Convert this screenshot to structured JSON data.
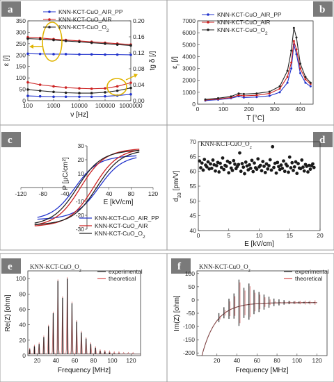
{
  "chart_data": [
    {
      "id": "a",
      "type": "line",
      "panel_label": "a",
      "xlabel": "ν [Hz]",
      "ylabel": "ε [/]",
      "y2label": "tg δ [/]",
      "xscale": "log",
      "xlim": [
        100,
        1000000
      ],
      "ylim": [
        0,
        350
      ],
      "y2lim": [
        0,
        0.2
      ],
      "xticks": [
        "100",
        "1000",
        "10000",
        "100000",
        "1000000"
      ],
      "yticks": [
        "0",
        "50",
        "100",
        "150",
        "200",
        "250",
        "300",
        "350"
      ],
      "y2ticks": [
        "0.00",
        "0.04",
        "0.08",
        "0.12",
        "0.16",
        "0.20"
      ],
      "legend": [
        "KNN-KCT-CuO_AIR_PP",
        "KNN-KCT-CuO_AIR",
        "KNN-KCT-CuO_O2"
      ],
      "legend_placement": "top-left",
      "colors": [
        "#2233cc",
        "#cc2222",
        "#222222"
      ],
      "series": [
        {
          "name": "KNN-KCT-CuO_AIR_PP",
          "axis": "left",
          "x": [
            100,
            300,
            1000,
            3000,
            10000,
            30000,
            100000,
            300000,
            1000000
          ],
          "values": [
            206,
            205,
            204,
            204,
            203,
            203,
            202,
            202,
            201
          ]
        },
        {
          "name": "KNN-KCT-CuO_AIR",
          "axis": "left",
          "x": [
            100,
            300,
            1000,
            3000,
            10000,
            30000,
            100000,
            300000,
            1000000
          ],
          "values": [
            278,
            275,
            270,
            266,
            262,
            258,
            254,
            250,
            246
          ]
        },
        {
          "name": "KNN-KCT-CuO_O2",
          "axis": "left",
          "x": [
            100,
            300,
            1000,
            3000,
            10000,
            30000,
            100000,
            300000,
            1000000
          ],
          "values": [
            272,
            270,
            266,
            262,
            258,
            254,
            250,
            246,
            242
          ]
        },
        {
          "name": "KNN-KCT-CuO_AIR_PP",
          "axis": "right",
          "x": [
            100,
            300,
            1000,
            3000,
            10000,
            30000,
            100000,
            300000,
            1000000
          ],
          "values": [
            0.012,
            0.011,
            0.01,
            0.01,
            0.01,
            0.01,
            0.011,
            0.013,
            0.016
          ]
        },
        {
          "name": "KNN-KCT-CuO_AIR",
          "axis": "right",
          "x": [
            100,
            300,
            1000,
            3000,
            10000,
            30000,
            100000,
            300000,
            1000000
          ],
          "values": [
            0.046,
            0.04,
            0.036,
            0.033,
            0.031,
            0.03,
            0.031,
            0.036,
            0.045
          ]
        },
        {
          "name": "KNN-KCT-CuO_O2",
          "axis": "right",
          "x": [
            100,
            300,
            1000,
            3000,
            10000,
            30000,
            100000,
            300000,
            1000000
          ],
          "values": [
            0.028,
            0.025,
            0.022,
            0.02,
            0.019,
            0.019,
            0.021,
            0.025,
            0.032
          ]
        }
      ]
    },
    {
      "id": "b",
      "type": "line",
      "panel_label": "b",
      "xlabel": "T [°C]",
      "ylabel": "εr [/]",
      "xlim": [
        0,
        450
      ],
      "ylim": [
        0,
        7000
      ],
      "xticks": [
        "0",
        "100",
        "200",
        "300",
        "400"
      ],
      "yticks": [
        "0",
        "1000",
        "2000",
        "3000",
        "4000",
        "5000",
        "6000",
        "7000"
      ],
      "legend": [
        "KNN-KCT-CuO_AIR_PP",
        "KNN-KCT-CuO_AIR",
        "KNN-KCT-CuO_O2"
      ],
      "legend_placement": "top-left",
      "colors": [
        "#2233cc",
        "#cc2222",
        "#222222"
      ],
      "series": [
        {
          "name": "KNN-KCT-CuO_AIR_PP",
          "x": [
            30,
            80,
            130,
            160,
            180,
            230,
            280,
            320,
            350,
            365,
            375,
            385,
            400,
            420,
            440
          ],
          "values": [
            300,
            380,
            500,
            660,
            560,
            600,
            700,
            1000,
            1800,
            3000,
            5000,
            4200,
            2600,
            1800,
            1500
          ]
        },
        {
          "name": "KNN-KCT-CuO_AIR",
          "x": [
            30,
            80,
            130,
            160,
            180,
            230,
            280,
            320,
            350,
            365,
            375,
            385,
            400,
            420,
            440
          ],
          "values": [
            350,
            430,
            560,
            760,
            700,
            750,
            900,
            1300,
            2300,
            3500,
            5300,
            4600,
            3000,
            2100,
            1700
          ]
        },
        {
          "name": "KNN-KCT-CuO_O2",
          "x": [
            30,
            80,
            130,
            160,
            180,
            230,
            280,
            320,
            350,
            365,
            375,
            385,
            400,
            420,
            440
          ],
          "values": [
            400,
            500,
            650,
            900,
            850,
            900,
            1050,
            1500,
            2800,
            4500,
            6400,
            5600,
            3400,
            2300,
            1800
          ]
        }
      ]
    },
    {
      "id": "c",
      "type": "line",
      "panel_label": "c",
      "xlabel": "E [kV/cm]",
      "ylabel": "P [µC/cm²]",
      "xlim": [
        -120,
        120
      ],
      "ylim": [
        -30,
        30
      ],
      "xticks": [
        "-120",
        "-80",
        "-40",
        "0",
        "40",
        "80",
        "120"
      ],
      "yticks": [
        "-30",
        "-20",
        "-10",
        "0",
        "10",
        "20",
        "30"
      ],
      "legend": [
        "KNN-KCT-CuO_AIR_PP",
        "KNN-KCT-CuO_AIR",
        "KNN-KCT-CuO_O2"
      ],
      "legend_placement": "bottom-right",
      "colors": [
        "#2233cc",
        "#cc2222",
        "#222222"
      ],
      "series": [
        {
          "name": "KNN-KCT-CuO_AIR_PP",
          "Ec": 22,
          "Pr": 10,
          "Emax": 90,
          "Ps": 23
        },
        {
          "name": "KNN-KCT-CuO_AIR",
          "Ec": 12,
          "Pr": 15,
          "Emax": 95,
          "Ps": 28
        },
        {
          "name": "KNN-KCT-CuO_O2",
          "Ec": 18,
          "Pr": 21,
          "Emax": 95,
          "Ps": 27
        }
      ]
    },
    {
      "id": "d",
      "type": "scatter",
      "panel_label": "d",
      "title": "KNN-KCT-CuO_O2",
      "xlabel": "E [kV/cm]",
      "ylabel": "d33 [pm/V]",
      "xlim": [
        0,
        20
      ],
      "ylim": [
        40,
        70
      ],
      "xticks": [
        "0",
        "5",
        "10",
        "15",
        "20"
      ],
      "yticks": [
        "40",
        "45",
        "50",
        "55",
        "60",
        "65",
        "70"
      ],
      "series": [
        {
          "name": "d33",
          "x": [
            0.2,
            0.4,
            0.6,
            0.8,
            1.0,
            1.2,
            1.4,
            1.6,
            1.8,
            2.0,
            2.2,
            2.4,
            2.6,
            2.8,
            3.0,
            3.2,
            3.4,
            3.6,
            3.8,
            4.0,
            4.2,
            4.4,
            4.6,
            4.8,
            5.0,
            5.2,
            5.4,
            5.6,
            5.8,
            6.0,
            6.2,
            6.4,
            6.6,
            6.8,
            7.0,
            7.2,
            7.4,
            7.6,
            7.8,
            8.0,
            8.2,
            8.4,
            8.6,
            8.8,
            9.0,
            9.2,
            9.4,
            9.6,
            9.8,
            10.0,
            10.2,
            10.4,
            10.6,
            10.8,
            11.0,
            11.2,
            11.4,
            11.6,
            11.8,
            12.0,
            12.2,
            12.4,
            12.6,
            12.8,
            13.0,
            13.2,
            13.4,
            13.6,
            13.8,
            14.0,
            14.2,
            14.4,
            14.6,
            14.8,
            15.0,
            15.2,
            15.4,
            15.6,
            15.8,
            16.0,
            16.2,
            16.4,
            16.6,
            16.8,
            17.0,
            17.2,
            17.4,
            17.6,
            17.8,
            18.0,
            18.2,
            18.4,
            18.6,
            18.8,
            19.0
          ],
          "values": [
            63.5,
            61.2,
            62.8,
            60.4,
            64.0,
            62.1,
            61.5,
            63.2,
            60.8,
            62.5,
            61.0,
            63.8,
            62.2,
            60.1,
            61.9,
            63.0,
            59.8,
            62.7,
            61.3,
            64.5,
            60.6,
            62.0,
            61.7,
            63.4,
            59.5,
            62.9,
            61.1,
            60.3,
            63.6,
            62.4,
            60.9,
            61.6,
            62.3,
            66.2,
            60.0,
            62.6,
            61.4,
            59.2,
            63.1,
            61.8,
            60.5,
            62.2,
            61.0,
            63.7,
            59.9,
            62.8,
            61.2,
            60.7,
            64.2,
            61.5,
            62.0,
            60.2,
            63.3,
            61.7,
            59.6,
            62.5,
            60.8,
            61.9,
            63.9,
            60.4,
            68.3,
            61.3,
            62.7,
            59.4,
            63.0,
            61.6,
            60.6,
            62.1,
            61.0,
            63.5,
            60.0,
            62.4,
            61.8,
            59.7,
            64.8,
            61.2,
            62.9,
            60.3,
            61.5,
            63.2,
            59.3,
            62.6,
            61.1,
            60.9,
            63.8,
            61.4,
            60.1,
            62.3,
            61.7,
            59.8,
            62.0,
            60.7,
            61.9,
            62.5,
            61.3
          ]
        }
      ]
    },
    {
      "id": "e",
      "type": "line",
      "panel_label": "e",
      "title": "KNN-KCT-CuO_O2",
      "xlabel": "Frequency [MHz]",
      "ylabel": "Re(Z) [ohm]",
      "xlim": [
        10,
        130
      ],
      "ylim": [
        0,
        110
      ],
      "xticks": [
        "20",
        "40",
        "60",
        "80",
        "100",
        "120"
      ],
      "yticks": [
        "0",
        "20",
        "40",
        "60",
        "80",
        "100"
      ],
      "legend": [
        "experimental",
        "theoretical"
      ],
      "legend_placement": "top-right",
      "colors": [
        "#222222",
        "#cc2222"
      ],
      "peaks": {
        "x": [
          12,
          17,
          22,
          27,
          32,
          37,
          42,
          47,
          52,
          57,
          62,
          67,
          72,
          77,
          82,
          87,
          92,
          97,
          102,
          107,
          112,
          117,
          122
        ],
        "values": [
          8,
          12,
          15,
          24,
          38,
          55,
          97,
          75,
          100,
          68,
          44,
          30,
          22,
          15,
          10,
          6,
          5,
          4,
          3,
          3,
          2,
          2,
          2
        ]
      }
    },
    {
      "id": "f",
      "type": "line",
      "panel_label": "f",
      "title": "KNN-KCT-CuO_O2",
      "xlabel": "Frequency [MHz]",
      "ylabel": "Im(Z) [ohm]",
      "xlim": [
        0,
        130
      ],
      "ylim": [
        -210,
        110
      ],
      "xticks": [
        "20",
        "40",
        "60",
        "80",
        "100",
        "120"
      ],
      "yticks": [
        "-200",
        "-150",
        "-100",
        "-50",
        "0",
        "50",
        "100"
      ],
      "legend": [
        "experimental",
        "theoretical"
      ],
      "legend_placement": "top-right",
      "colors": [
        "#222222",
        "#cc2222"
      ],
      "peaks": {
        "x": [
          22,
          27,
          32,
          37,
          42,
          47,
          52,
          57,
          62,
          67,
          72,
          77,
          82,
          87,
          92,
          97,
          102,
          107,
          112,
          117
        ],
        "values": [
          18,
          22,
          40,
          50,
          92,
          60,
          72,
          48,
          40,
          30,
          22,
          15,
          12,
          9,
          7,
          5,
          4,
          3,
          3,
          2
        ]
      }
    }
  ]
}
